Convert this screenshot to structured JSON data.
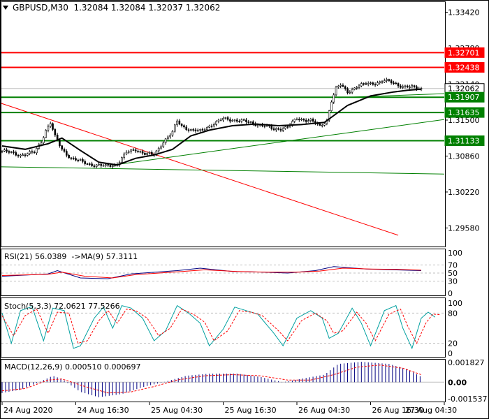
{
  "header": {
    "symbol_line": "GBPUSD,M30  1.32084 1.32084 1.32037 1.32062",
    "triangle_icon": "triangle-down-icon"
  },
  "colors": {
    "candle": "#000000",
    "ma": "#000000",
    "level": "#008000",
    "resistance": "#ff0000",
    "trend_down": "#ff0000",
    "trend_up": "#008000",
    "current": "#c0c0c0",
    "rsi": "#000080",
    "rsi_ma": "#ff0000",
    "stoch_main": "#00a0a0",
    "stoch_signal": "#ff0000",
    "macd_hist": "#000080",
    "macd_signal": "#ff0000"
  },
  "chart_data": [
    {
      "type": "candlestick",
      "title": "GBPUSD,M30",
      "ylim": [
        1.2925,
        1.336
      ],
      "y_ticks": [
        "1.33420",
        "1.32780",
        "1.32140",
        "1.31500",
        "1.30860",
        "1.30220",
        "1.29580"
      ],
      "x_ticks": [
        "24 Aug 2020",
        "24 Aug 16:30",
        "25 Aug 04:30",
        "25 Aug 16:30",
        "26 Aug 04:30",
        "26 Aug 16:30",
        "27 Aug 04:30"
      ],
      "close_path": [
        [
          0,
          1.3095
        ],
        [
          8,
          1.3088
        ],
        [
          14,
          1.3092
        ],
        [
          17,
          1.3112
        ],
        [
          19,
          1.3132
        ],
        [
          21,
          1.3145
        ],
        [
          23,
          1.312
        ],
        [
          26,
          1.3098
        ],
        [
          30,
          1.3082
        ],
        [
          35,
          1.3075
        ],
        [
          40,
          1.307
        ],
        [
          45,
          1.3068
        ],
        [
          50,
          1.3072
        ],
        [
          54,
          1.3092
        ],
        [
          58,
          1.3098
        ],
        [
          62,
          1.309
        ],
        [
          66,
          1.3088
        ],
        [
          70,
          1.3112
        ],
        [
          74,
          1.3128
        ],
        [
          76,
          1.3148
        ],
        [
          78,
          1.314
        ],
        [
          82,
          1.3132
        ],
        [
          86,
          1.313
        ],
        [
          90,
          1.314
        ],
        [
          96,
          1.3152
        ],
        [
          102,
          1.315
        ],
        [
          108,
          1.3145
        ],
        [
          114,
          1.314
        ],
        [
          118,
          1.3133
        ],
        [
          124,
          1.3138
        ],
        [
          128,
          1.3152
        ],
        [
          134,
          1.315
        ],
        [
          138,
          1.3138
        ],
        [
          141,
          1.315
        ],
        [
          143,
          1.3185
        ],
        [
          145,
          1.3206
        ],
        [
          147,
          1.3212
        ],
        [
          150,
          1.32
        ],
        [
          154,
          1.321
        ],
        [
          158,
          1.3214
        ],
        [
          162,
          1.3216
        ],
        [
          166,
          1.322
        ],
        [
          170,
          1.3216
        ],
        [
          174,
          1.321
        ],
        [
          178,
          1.3208
        ],
        [
          182,
          1.3206
        ]
      ],
      "moving_average": [
        [
          0,
          1.3104
        ],
        [
          10,
          1.3098
        ],
        [
          20,
          1.3108
        ],
        [
          26,
          1.3118
        ],
        [
          34,
          1.3096
        ],
        [
          42,
          1.3075
        ],
        [
          50,
          1.307
        ],
        [
          58,
          1.3082
        ],
        [
          66,
          1.3088
        ],
        [
          74,
          1.3098
        ],
        [
          82,
          1.3122
        ],
        [
          90,
          1.3132
        ],
        [
          100,
          1.314
        ],
        [
          110,
          1.3143
        ],
        [
          120,
          1.314
        ],
        [
          130,
          1.3142
        ],
        [
          140,
          1.3146
        ],
        [
          150,
          1.3176
        ],
        [
          160,
          1.3193
        ],
        [
          170,
          1.32
        ],
        [
          176,
          1.3203
        ],
        [
          182,
          1.3205
        ]
      ],
      "horizontal_levels": [
        {
          "price": 1.32701,
          "label": "1.32701",
          "kind": "resistance"
        },
        {
          "price": 1.32438,
          "label": "1.32438",
          "kind": "resistance"
        },
        {
          "price": 1.32062,
          "label": "1.32062",
          "kind": "current"
        },
        {
          "price": 1.31907,
          "label": "1.31907",
          "kind": "level"
        },
        {
          "price": 1.31635,
          "label": "1.31635",
          "kind": "level"
        },
        {
          "price": 1.31133,
          "label": "1.31133",
          "kind": "level"
        }
      ],
      "trend_lines": [
        {
          "kind": "trend_down",
          "from": [
            -2,
            1.3182
          ],
          "to": [
            172,
            1.2945
          ]
        },
        {
          "kind": "trend_up",
          "from": [
            48,
            1.307
          ],
          "to": [
            192,
            1.3151
          ]
        },
        {
          "kind": "trend_up",
          "from": [
            -2,
            1.3067
          ],
          "to": [
            192,
            1.3054
          ]
        },
        {
          "kind": "trend_up",
          "from": [
            146,
            1.319
          ],
          "to": [
            192,
            1.3197
          ]
        }
      ]
    },
    {
      "type": "line",
      "title": "RSI(21) 56.0389  ->MA(9) 57.3111",
      "ylim": [
        0,
        100
      ],
      "y_ticks": [
        "100",
        "70",
        "50",
        "30",
        "0"
      ],
      "series": [
        {
          "kind": "rsi",
          "values": [
            [
              0,
              42
            ],
            [
              20,
              48
            ],
            [
              24,
              56
            ],
            [
              34,
              38
            ],
            [
              46,
              36
            ],
            [
              56,
              48
            ],
            [
              76,
              56
            ],
            [
              86,
              62
            ],
            [
              100,
              54
            ],
            [
              114,
              52
            ],
            [
              124,
              50
            ],
            [
              136,
              56
            ],
            [
              144,
              66
            ],
            [
              158,
              60
            ],
            [
              170,
              58
            ],
            [
              182,
              56
            ]
          ]
        },
        {
          "kind": "rsi_ma",
          "values": [
            [
              0,
              44
            ],
            [
              20,
              47
            ],
            [
              26,
              52
            ],
            [
              36,
              42
            ],
            [
              48,
              38
            ],
            [
              58,
              46
            ],
            [
              76,
              53
            ],
            [
              88,
              58
            ],
            [
              102,
              54
            ],
            [
              116,
              52
            ],
            [
              128,
              52
            ],
            [
              138,
              55
            ],
            [
              148,
              62
            ],
            [
              160,
              60
            ],
            [
              172,
              59
            ],
            [
              182,
              57
            ]
          ]
        }
      ]
    },
    {
      "type": "line",
      "title": "Stoch(5,3,3) 72.0621 77.5266",
      "ylim": [
        0,
        100
      ],
      "y_ticks": [
        "100",
        "80",
        "20",
        "0"
      ],
      "series": [
        {
          "kind": "stoch_main",
          "values": [
            [
              0,
              80
            ],
            [
              4,
              20
            ],
            [
              8,
              85
            ],
            [
              13,
              93
            ],
            [
              18,
              25
            ],
            [
              22,
              90
            ],
            [
              27,
              85
            ],
            [
              31,
              10
            ],
            [
              34,
              15
            ],
            [
              40,
              70
            ],
            [
              44,
              92
            ],
            [
              48,
              50
            ],
            [
              52,
              95
            ],
            [
              56,
              90
            ],
            [
              61,
              70
            ],
            [
              66,
              25
            ],
            [
              71,
              45
            ],
            [
              76,
              95
            ],
            [
              81,
              80
            ],
            [
              86,
              60
            ],
            [
              90,
              15
            ],
            [
              96,
              48
            ],
            [
              101,
              92
            ],
            [
              106,
              85
            ],
            [
              111,
              78
            ],
            [
              118,
              40
            ],
            [
              122,
              15
            ],
            [
              128,
              70
            ],
            [
              134,
              85
            ],
            [
              139,
              70
            ],
            [
              142,
              30
            ],
            [
              146,
              40
            ],
            [
              152,
              90
            ],
            [
              156,
              60
            ],
            [
              160,
              15
            ],
            [
              166,
              85
            ],
            [
              171,
              95
            ],
            [
              174,
              50
            ],
            [
              178,
              10
            ],
            [
              182,
              70
            ],
            [
              185,
              82
            ],
            [
              188,
              72
            ]
          ]
        },
        {
          "kind": "stoch_signal",
          "values": [
            [
              0,
              75
            ],
            [
              5,
              35
            ],
            [
              10,
              75
            ],
            [
              15,
              88
            ],
            [
              20,
              40
            ],
            [
              24,
              82
            ],
            [
              29,
              80
            ],
            [
              33,
              20
            ],
            [
              37,
              25
            ],
            [
              42,
              65
            ],
            [
              46,
              85
            ],
            [
              50,
              60
            ],
            [
              54,
              88
            ],
            [
              58,
              85
            ],
            [
              63,
              70
            ],
            [
              68,
              35
            ],
            [
              73,
              50
            ],
            [
              78,
              88
            ],
            [
              83,
              78
            ],
            [
              88,
              62
            ],
            [
              92,
              25
            ],
            [
              98,
              45
            ],
            [
              103,
              85
            ],
            [
              108,
              82
            ],
            [
              113,
              75
            ],
            [
              120,
              45
            ],
            [
              124,
              25
            ],
            [
              130,
              65
            ],
            [
              136,
              80
            ],
            [
              141,
              65
            ],
            [
              144,
              40
            ],
            [
              148,
              45
            ],
            [
              154,
              82
            ],
            [
              158,
              60
            ],
            [
              162,
              25
            ],
            [
              168,
              78
            ],
            [
              173,
              88
            ],
            [
              176,
              55
            ],
            [
              180,
              20
            ],
            [
              184,
              60
            ],
            [
              187,
              78
            ],
            [
              190,
              77
            ]
          ]
        }
      ]
    },
    {
      "type": "bar",
      "title": "MACD(12,26,9) 0.000510 0.000697",
      "ylim": [
        -0.0018,
        0.0021
      ],
      "y_ticks": [
        "0.001827",
        "0.00",
        "-0.001537"
      ],
      "histogram_path": [
        [
          0,
          -0.001
        ],
        [
          8,
          -0.0007
        ],
        [
          16,
          0.0
        ],
        [
          22,
          0.0006
        ],
        [
          26,
          0.0003
        ],
        [
          34,
          -0.0009
        ],
        [
          42,
          -0.0014
        ],
        [
          52,
          -0.0011
        ],
        [
          62,
          -0.0004
        ],
        [
          70,
          0.0
        ],
        [
          80,
          0.0006
        ],
        [
          90,
          0.0008
        ],
        [
          102,
          0.0008
        ],
        [
          112,
          0.0005
        ],
        [
          122,
          0.0
        ],
        [
          132,
          0.0004
        ],
        [
          140,
          0.0007
        ],
        [
          146,
          0.0017
        ],
        [
          156,
          0.0019
        ],
        [
          168,
          0.0017
        ],
        [
          176,
          0.0012
        ],
        [
          182,
          0.0005
        ]
      ],
      "signal_path": [
        [
          0,
          -0.0008
        ],
        [
          10,
          -0.0006
        ],
        [
          20,
          0.0002
        ],
        [
          26,
          0.0003
        ],
        [
          36,
          -0.0004
        ],
        [
          46,
          -0.001
        ],
        [
          56,
          -0.0009
        ],
        [
          66,
          -0.0004
        ],
        [
          76,
          0.0002
        ],
        [
          88,
          0.0006
        ],
        [
          100,
          0.0007
        ],
        [
          112,
          0.0006
        ],
        [
          124,
          0.0002
        ],
        [
          134,
          0.0002
        ],
        [
          144,
          0.0007
        ],
        [
          154,
          0.0014
        ],
        [
          164,
          0.0016
        ],
        [
          174,
          0.0013
        ],
        [
          182,
          0.0007
        ]
      ]
    }
  ]
}
